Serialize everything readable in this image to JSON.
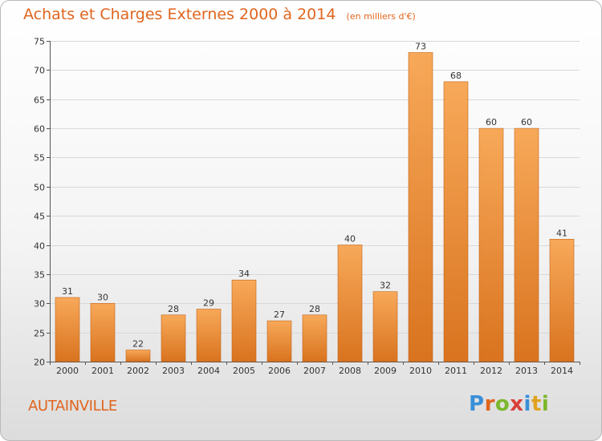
{
  "header": {
    "title": "Achats et Charges Externes 2000 à 2014",
    "unit_note": "(en milliers d'€)"
  },
  "footer": {
    "place_name": "AUTAINVILLE",
    "logo_text": "Proxiti",
    "logo_colors": [
      "#3a8fd8",
      "#e0651e",
      "#7cb72c",
      "#d9403a",
      "#3a8fd8",
      "#e0a11e",
      "#7cb72c"
    ]
  },
  "colors": {
    "bar_top": "#f7a959",
    "bar_bottom": "#d9731f",
    "bar_edge": "#c4631a",
    "text_accent": "#e0651e"
  },
  "chart_data": {
    "type": "bar",
    "categories": [
      "2000",
      "2001",
      "2002",
      "2003",
      "2004",
      "2005",
      "2006",
      "2007",
      "2008",
      "2009",
      "2010",
      "2011",
      "2012",
      "2013",
      "2014"
    ],
    "values": [
      31,
      30,
      22,
      28,
      29,
      34,
      27,
      28,
      40,
      32,
      73,
      68,
      60,
      60,
      41
    ],
    "title": "Achats et Charges Externes 2000 à 2014",
    "ylim": [
      20,
      75
    ],
    "yticks": [
      20,
      25,
      30,
      35,
      40,
      45,
      50,
      55,
      60,
      65,
      70,
      75
    ],
    "grid": true,
    "data_labels": true
  }
}
